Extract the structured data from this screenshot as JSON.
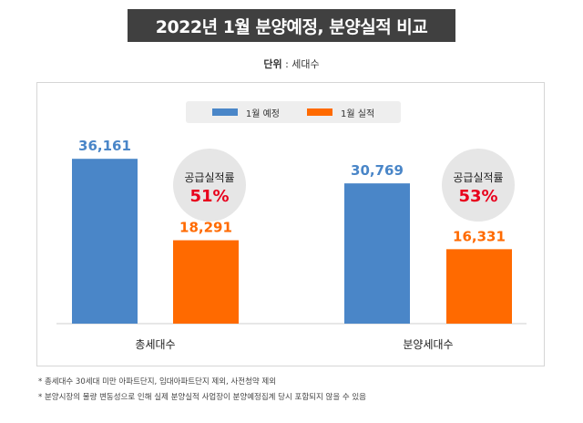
{
  "title": "2022년 1월 분양예정, 분양실적 비교",
  "unit": {
    "label": "단위",
    "sep": " : ",
    "value": "세대수"
  },
  "colors": {
    "planned": "#4a86c8",
    "actual": "#ff6a00",
    "badge_bg": "#e6e6e6",
    "badge_pct": "#e8001c"
  },
  "chart_data": {
    "type": "bar",
    "categories": [
      "총세대수",
      "분양세대수"
    ],
    "series": [
      {
        "name": "1월 예정",
        "values": [
          36161,
          30769
        ],
        "labels": [
          "36,161",
          "30,769"
        ]
      },
      {
        "name": "1월 실적",
        "values": [
          18291,
          16331
        ],
        "labels": [
          "18,291",
          "16,331"
        ]
      }
    ],
    "annotations": [
      {
        "label": "공급실적률",
        "value": "51%"
      },
      {
        "label": "공급실적률",
        "value": "53%"
      }
    ],
    "ylim": [
      0,
      40000
    ],
    "legend_position": "top-center",
    "grid": false
  },
  "notes": [
    "* 총세대수 30세대 미만 아파트단지, 임대아파트단지 제외, 사전청약 제외",
    "* 분양시장의 물량 변동성으로 인해 실제 분양실적 사업장이 분양예정집계 당시 포함되지 않을 수 있음"
  ]
}
